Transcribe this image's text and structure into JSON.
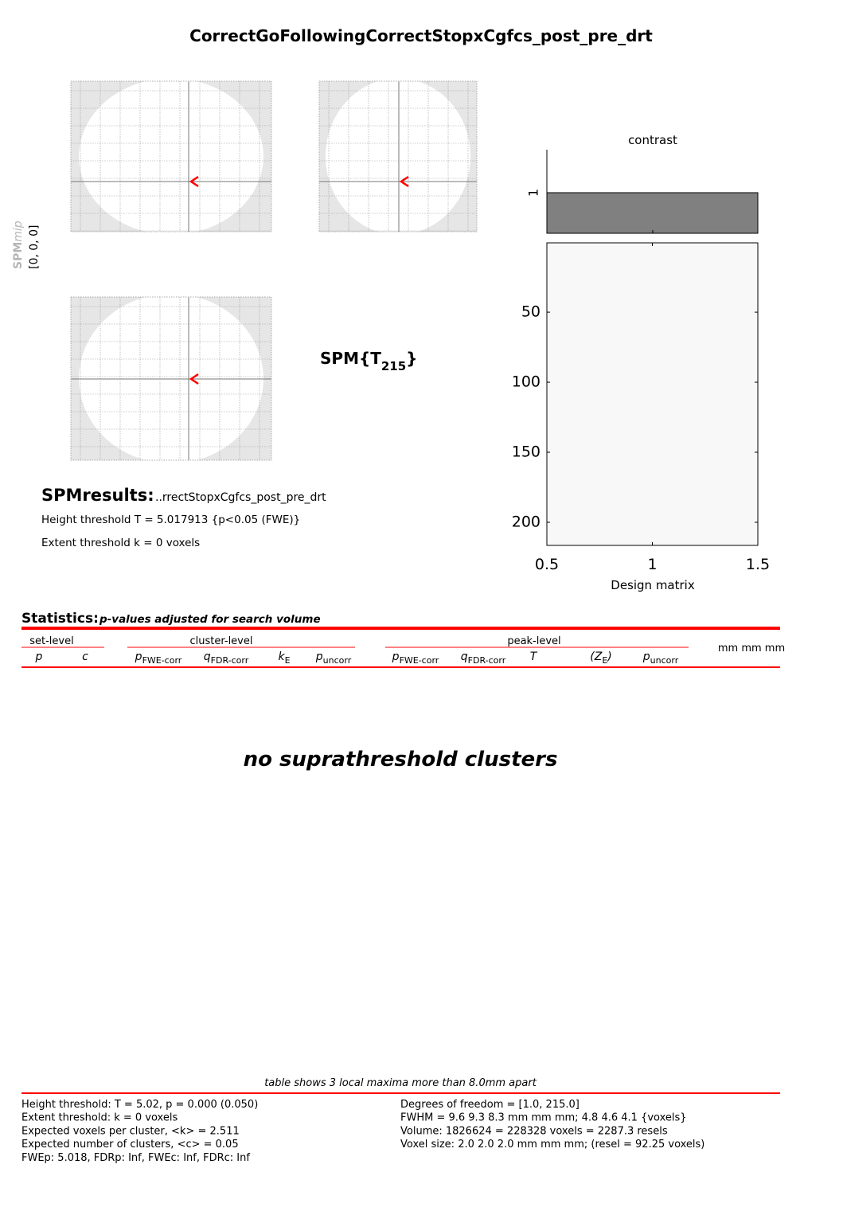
{
  "title": "CorrectGoFollowingCorrectStopxCgfcs_post_pre_drt",
  "mip_label": {
    "bold": "SPM",
    "italic": "mip",
    "coords": "[0, 0, 0]"
  },
  "statistic": {
    "prefix": "SPM{T",
    "subscript": "215",
    "suffix": "}"
  },
  "contrast": {
    "title": "contrast",
    "values": [
      1
    ],
    "ylim": [
      0,
      2
    ],
    "yticks": [
      1
    ],
    "color": "#808080"
  },
  "design_matrix": {
    "xlabel": "Design matrix",
    "xlim": [
      0.5,
      1.5
    ],
    "xticks": [
      0.5,
      1,
      1.5
    ],
    "ylim": [
      0.5,
      216.5
    ],
    "yticks": [
      50,
      100,
      150,
      200
    ]
  },
  "results": {
    "heading": "SPMresults:",
    "name": "..rrectStopxCgfcs_post_pre_drt",
    "height": "Height threshold T = 5.017913  {p<0.05 (FWE)}",
    "extent": "Extent threshold k = 0 voxels"
  },
  "statistics": {
    "heading": "Statistics:",
    "subheading": "p-values adjusted for search volume",
    "groups": {
      "set": {
        "label": "set-level",
        "columns": [
          {
            "symbol": "p"
          },
          {
            "symbol": "c"
          }
        ]
      },
      "cluster": {
        "label": "cluster-level",
        "columns": [
          {
            "symbol": "p",
            "subscript": "FWE-corr"
          },
          {
            "symbol": "q",
            "subscript": "FDR-corr"
          },
          {
            "symbol": "k",
            "subscript": "E"
          },
          {
            "symbol": "p",
            "subscript": "uncorr"
          }
        ]
      },
      "peak": {
        "label": "peak-level",
        "columns": [
          {
            "symbol": "p",
            "subscript": "FWE-corr"
          },
          {
            "symbol": "q",
            "subscript": "FDR-corr"
          },
          {
            "symbol": "T"
          },
          {
            "symbol": "(Z",
            "subscript": "E",
            "suffix": ")"
          },
          {
            "symbol": "p",
            "subscript": "uncorr"
          }
        ]
      }
    },
    "coords_header": "mm mm mm",
    "empty_message": "no suprathreshold clusters"
  },
  "footer": {
    "note": "table shows 3 local maxima more than 8.0mm apart",
    "left": [
      "Height threshold: T = 5.02, p = 0.000 (0.050)",
      "Extent threshold: k = 0 voxels",
      "Expected voxels per cluster, <k> = 2.511",
      "Expected number of clusters, <c> = 0.05",
      "FWEp: 5.018, FDRp: Inf, FWEc: Inf, FDRc: Inf"
    ],
    "right": [
      "Degrees of freedom = [1.0, 215.0]",
      "FWHM = 9.6 9.3 8.3 mm mm mm; 4.8 4.6 4.1 {voxels}",
      "Volume: 1826624 = 228328 voxels = 2287.3 resels",
      "Voxel size: 2.0 2.0 2.0 mm mm mm; (resel = 92.25 voxels)"
    ]
  }
}
